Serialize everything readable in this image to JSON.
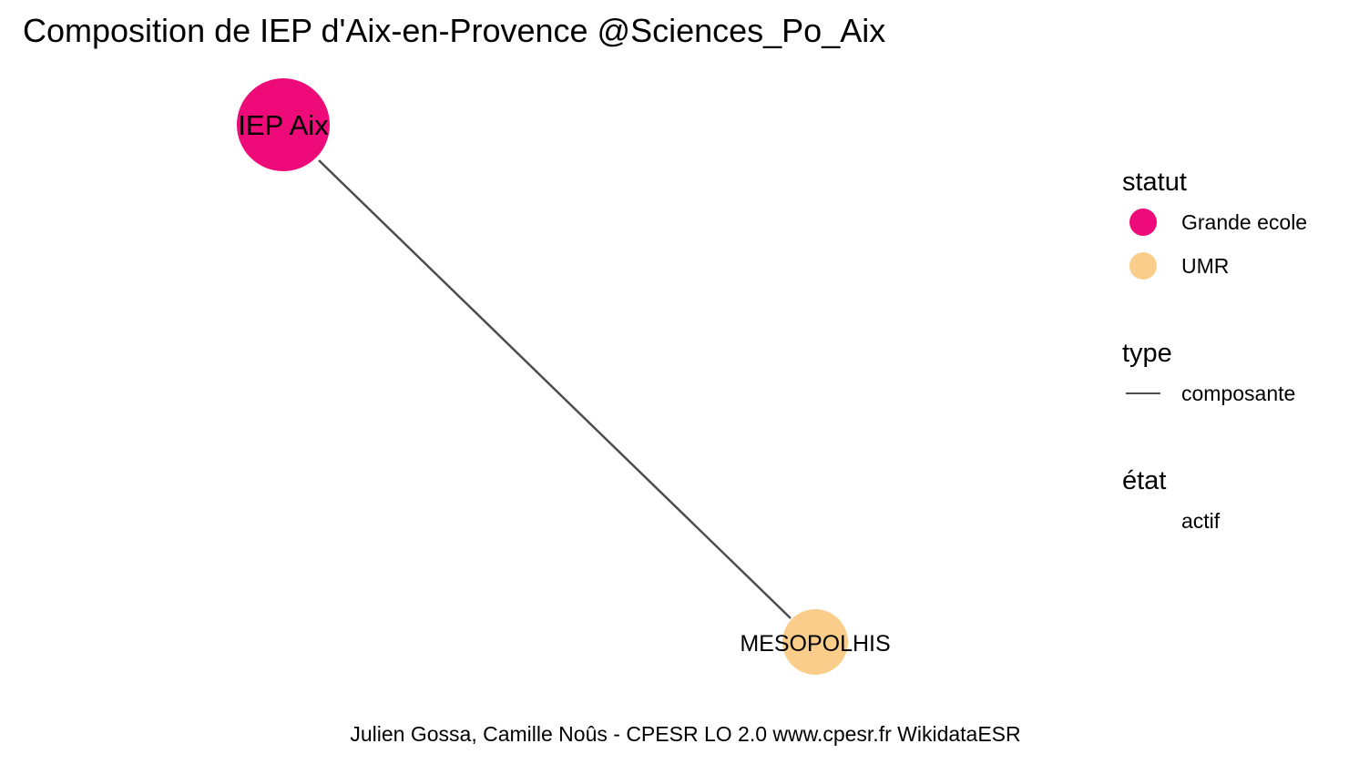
{
  "title": "Composition de IEP d'Aix-en-Provence @Sciences_Po_Aix",
  "caption": "Julien Gossa, Camille Noûs - CPESR LO 2.0 www.cpesr.fr WikidataESR",
  "colors": {
    "grande_ecole": "#EE0A78",
    "umr": "#FBCD8A",
    "edge": "#4D4D4D"
  },
  "nodes": [
    {
      "id": "iep",
      "label": "IEP Aix",
      "statut": "Grande ecole",
      "etat": "actif"
    },
    {
      "id": "meso",
      "label": "MESOPOLHIS",
      "statut": "UMR",
      "etat": "actif"
    }
  ],
  "edges": [
    {
      "from": "iep",
      "to": "meso",
      "type": "composante"
    }
  ],
  "legend": {
    "statut": {
      "title": "statut",
      "items": [
        {
          "label": "Grande ecole",
          "color": "#EE0A78"
        },
        {
          "label": "UMR",
          "color": "#FBCD8A"
        }
      ]
    },
    "type": {
      "title": "type",
      "items": [
        {
          "label": "composante"
        }
      ]
    },
    "etat": {
      "title": "état",
      "items": [
        {
          "label": "actif"
        }
      ]
    }
  }
}
